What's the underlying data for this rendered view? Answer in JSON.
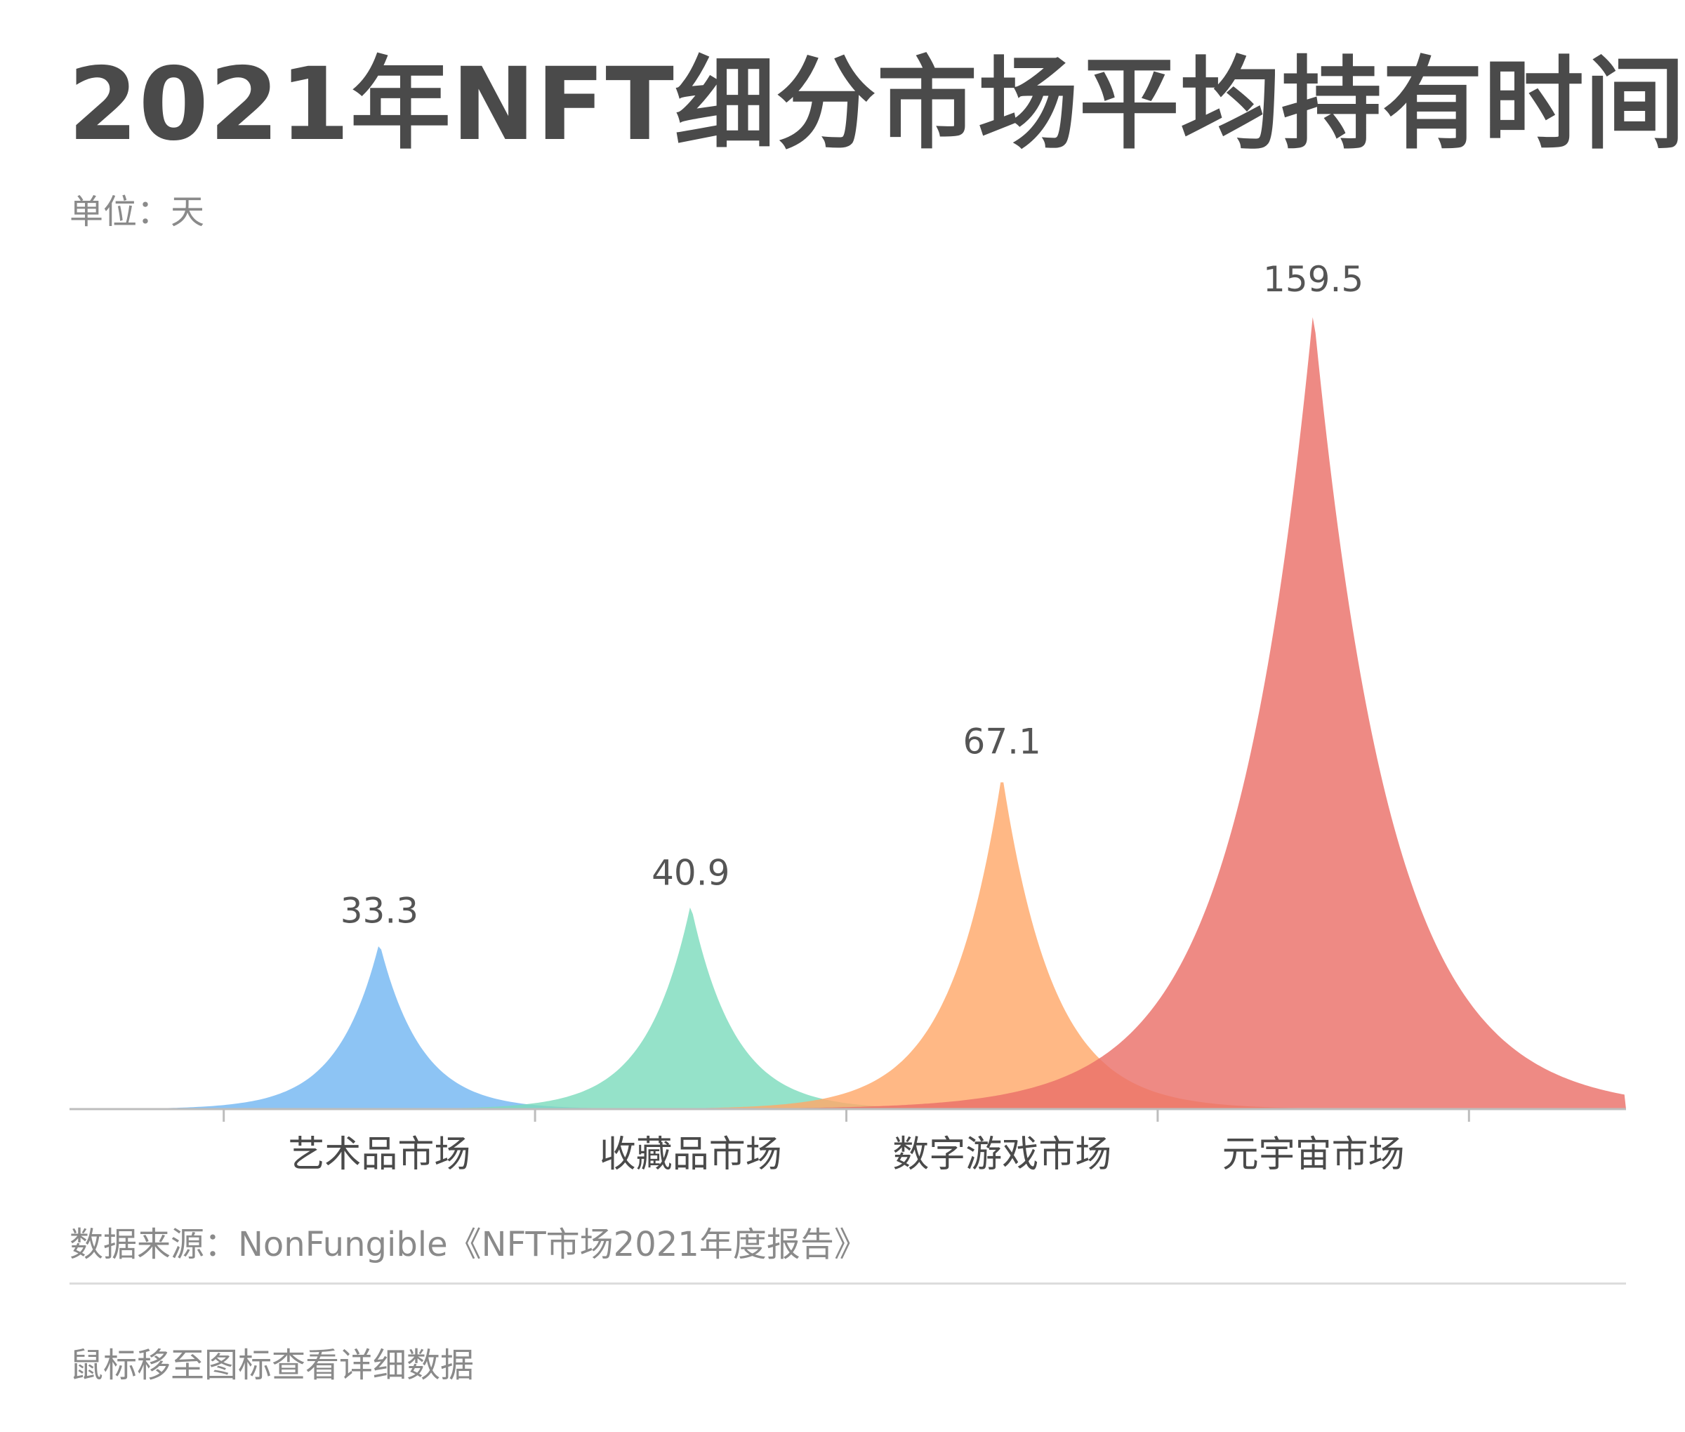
{
  "title": "2021年NFT细分市场平均持有时间",
  "subtitle": "单位：天",
  "source": "数据来源：NonFungible《NFT市场2021年度报告》",
  "hint": "鼠标移至图标查看详细数据",
  "chart_data": {
    "type": "bar",
    "categories": [
      "艺术品市场",
      "收藏品市场",
      "数字游戏市场",
      "元宇宙市场"
    ],
    "values": [
      33.3,
      40.9,
      67.1,
      159.5
    ],
    "value_labels": [
      "33.3",
      "40.9",
      "67.1",
      "159.5"
    ],
    "colors": [
      "#74b7f1",
      "#7edcbd",
      "#ffa86a",
      "#ea7069"
    ],
    "ylim": [
      0,
      162
    ],
    "grid": false,
    "legend": "none"
  }
}
